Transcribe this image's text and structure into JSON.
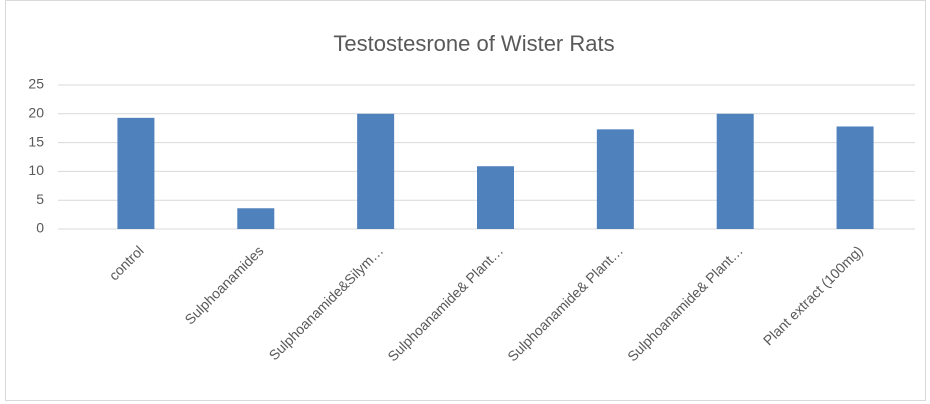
{
  "chart_data": {
    "type": "bar",
    "title": "Testostesrone of Wister Rats",
    "categories": [
      "control",
      "Sulphoanamides",
      "Sulphoanamide&Silym…",
      "Sulphoanamide& Plant…",
      "Sulphoanamide& Plant…",
      "Sulphoanamide& Plant…",
      "Plant extract (100mg)"
    ],
    "values": [
      19.3,
      3.6,
      20,
      10.9,
      17.3,
      20,
      17.8
    ],
    "color": "#4f81bd",
    "ylim": [
      0,
      25
    ],
    "yticks": [
      0,
      5,
      10,
      15,
      20,
      25
    ],
    "grid": true
  }
}
